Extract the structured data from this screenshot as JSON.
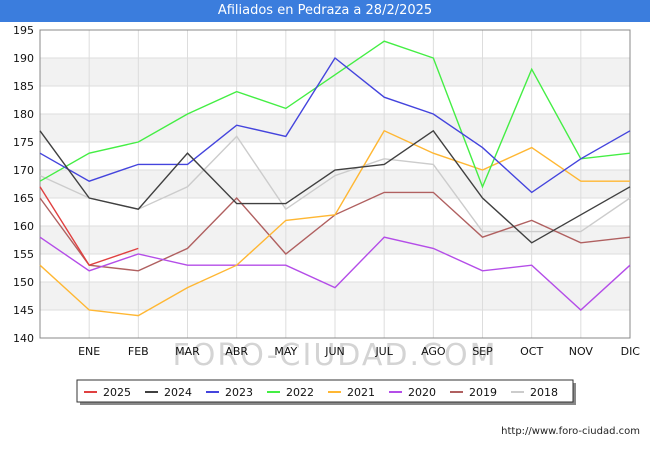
{
  "title": "Afiliados en Pedraza a 28/2/2025",
  "source": "http://www.foro-ciudad.com",
  "watermark": "FORO-CIUDAD.COM",
  "chart_data": {
    "type": "line",
    "categories": [
      "DIC",
      "ENE",
      "FEB",
      "MAR",
      "ABR",
      "MAY",
      "JUN",
      "JUL",
      "AGO",
      "SEP",
      "OCT",
      "NOV",
      "DIC"
    ],
    "x_tick_labels": [
      "",
      "ENE",
      "FEB",
      "MAR",
      "ABR",
      "MAY",
      "JUN",
      "JUL",
      "AGO",
      "SEP",
      "OCT",
      "NOV",
      "DIC"
    ],
    "y_ticks": [
      140,
      145,
      150,
      155,
      160,
      165,
      170,
      175,
      180,
      185,
      190,
      195
    ],
    "ylim": [
      140,
      195
    ],
    "grid": true,
    "legend_position": "bottom",
    "series": [
      {
        "name": "2025",
        "color": "#e04040",
        "values": [
          167,
          153,
          156,
          null,
          null,
          null,
          null,
          null,
          null,
          null,
          null,
          null,
          null
        ]
      },
      {
        "name": "2024",
        "color": "#404040",
        "values": [
          177,
          165,
          163,
          173,
          164,
          164,
          170,
          171,
          177,
          165,
          157,
          162,
          167
        ]
      },
      {
        "name": "2023",
        "color": "#4444dd",
        "values": [
          173,
          168,
          171,
          171,
          178,
          176,
          190,
          183,
          180,
          174,
          166,
          172,
          177
        ]
      },
      {
        "name": "2022",
        "color": "#44ee44",
        "values": [
          168,
          173,
          175,
          180,
          184,
          181,
          187,
          193,
          190,
          167,
          188,
          172,
          173
        ]
      },
      {
        "name": "2021",
        "color": "#ffb733",
        "values": [
          153,
          145,
          144,
          149,
          153,
          161,
          162,
          177,
          173,
          170,
          174,
          168,
          168
        ]
      },
      {
        "name": "2020",
        "color": "#b44de8",
        "values": [
          158,
          152,
          155,
          153,
          153,
          153,
          149,
          158,
          156,
          152,
          153,
          145,
          153
        ]
      },
      {
        "name": "2019",
        "color": "#b06060",
        "values": [
          165,
          153,
          152,
          156,
          165,
          155,
          162,
          166,
          166,
          158,
          161,
          157,
          158
        ]
      },
      {
        "name": "2018",
        "color": "#cccccc",
        "values": [
          169,
          165,
          163,
          167,
          176,
          163,
          169,
          172,
          171,
          159,
          159,
          159,
          165
        ]
      }
    ]
  }
}
